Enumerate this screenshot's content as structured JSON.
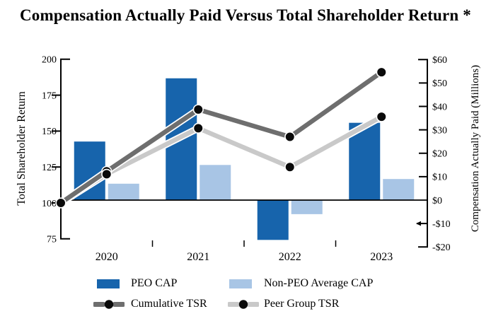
{
  "title": "Compensation Actually Paid Versus Total Shareholder Return *",
  "chart_data": {
    "type": "combo-bar-line",
    "categories": [
      "2020",
      "2021",
      "2022",
      "2023"
    ],
    "bar_series": [
      {
        "name": "PEO CAP",
        "axis": "right",
        "color": "#1764AC",
        "values": [
          25,
          52,
          -17,
          33
        ]
      },
      {
        "name": "Non-PEO Average CAP",
        "axis": "right",
        "color": "#A8C5E5",
        "values": [
          7,
          15,
          -6,
          9
        ]
      }
    ],
    "line_series": [
      {
        "name": "Cumulative TSR",
        "axis": "left",
        "color": "#6E6E6E",
        "start_value": 100,
        "values": [
          122,
          165,
          146,
          191
        ]
      },
      {
        "name": "Peer Group TSR",
        "axis": "left",
        "color": "#C9C9C9",
        "start_value": 100,
        "values": [
          120,
          152,
          125,
          160
        ]
      }
    ],
    "left_axis": {
      "label": "Total Shareholder Return",
      "min": 75,
      "max": 200,
      "tick_values": [
        200,
        175,
        150,
        125,
        100,
        75
      ]
    },
    "right_axis": {
      "label": "Compensation Actually Paid (Millions)",
      "min": -20,
      "max": 60,
      "tick_values": [
        60,
        50,
        40,
        30,
        20,
        10,
        0,
        -10,
        -20
      ],
      "tick_labels": [
        "$60",
        "$50",
        "$40",
        "$30",
        "$20",
        "$10",
        "$0",
        "-$10",
        "-$20"
      ]
    },
    "baseline": {
      "left_axis_value": 100,
      "right_axis_value": 0
    },
    "marker": {
      "shape": "circle",
      "color": "#0A0A0A"
    },
    "grid": false,
    "legend_position": "bottom"
  }
}
